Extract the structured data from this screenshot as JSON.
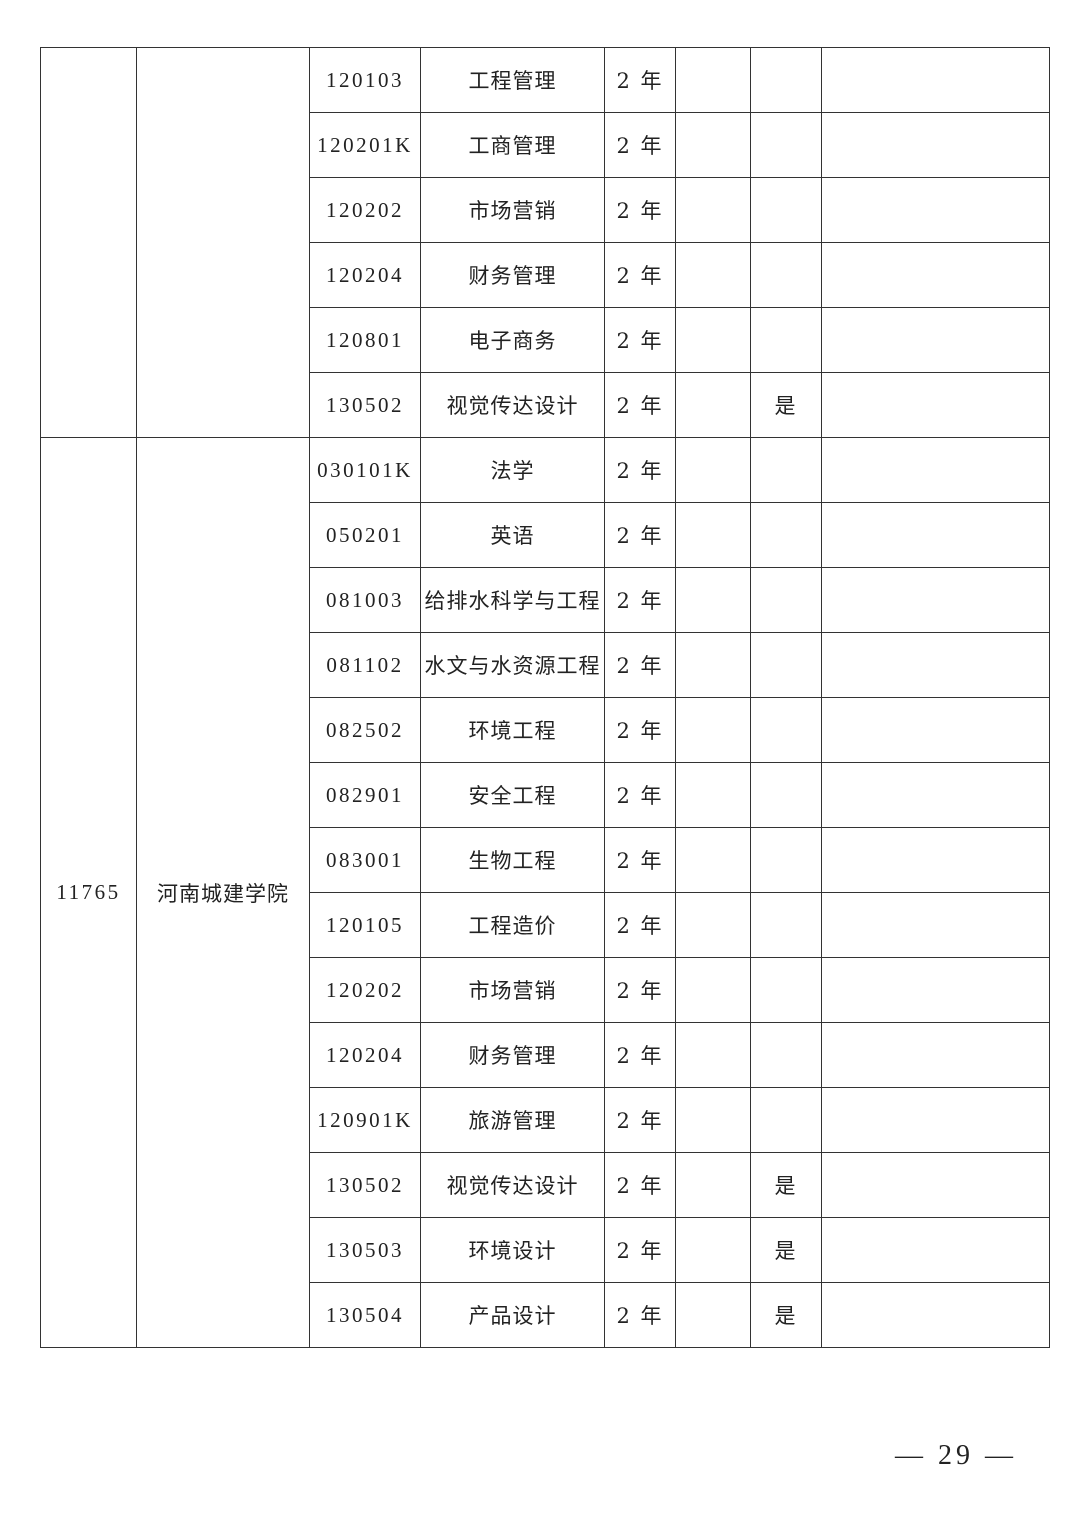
{
  "groups": [
    {
      "school_code": "",
      "school_name": "",
      "rows": [
        {
          "code": "120103",
          "major": "工程管理",
          "years": "2 年",
          "c5": "",
          "c6": "",
          "c7": ""
        },
        {
          "code": "120201K",
          "major": "工商管理",
          "years": "2 年",
          "c5": "",
          "c6": "",
          "c7": ""
        },
        {
          "code": "120202",
          "major": "市场营销",
          "years": "2 年",
          "c5": "",
          "c6": "",
          "c7": ""
        },
        {
          "code": "120204",
          "major": "财务管理",
          "years": "2 年",
          "c5": "",
          "c6": "",
          "c7": ""
        },
        {
          "code": "120801",
          "major": "电子商务",
          "years": "2 年",
          "c5": "",
          "c6": "",
          "c7": ""
        },
        {
          "code": "130502",
          "major": "视觉传达设计",
          "years": "2 年",
          "c5": "",
          "c6": "是",
          "c7": ""
        }
      ]
    },
    {
      "school_code": "11765",
      "school_name": "河南城建学院",
      "rows": [
        {
          "code": "030101K",
          "major": "法学",
          "years": "2 年",
          "c5": "",
          "c6": "",
          "c7": ""
        },
        {
          "code": "050201",
          "major": "英语",
          "years": "2 年",
          "c5": "",
          "c6": "",
          "c7": ""
        },
        {
          "code": "081003",
          "major": "给排水科学与工程",
          "years": "2 年",
          "c5": "",
          "c6": "",
          "c7": ""
        },
        {
          "code": "081102",
          "major": "水文与水资源工程",
          "years": "2 年",
          "c5": "",
          "c6": "",
          "c7": ""
        },
        {
          "code": "082502",
          "major": "环境工程",
          "years": "2 年",
          "c5": "",
          "c6": "",
          "c7": ""
        },
        {
          "code": "082901",
          "major": "安全工程",
          "years": "2 年",
          "c5": "",
          "c6": "",
          "c7": ""
        },
        {
          "code": "083001",
          "major": "生物工程",
          "years": "2 年",
          "c5": "",
          "c6": "",
          "c7": ""
        },
        {
          "code": "120105",
          "major": "工程造价",
          "years": "2 年",
          "c5": "",
          "c6": "",
          "c7": ""
        },
        {
          "code": "120202",
          "major": "市场营销",
          "years": "2 年",
          "c5": "",
          "c6": "",
          "c7": ""
        },
        {
          "code": "120204",
          "major": "财务管理",
          "years": "2 年",
          "c5": "",
          "c6": "",
          "c7": ""
        },
        {
          "code": "120901K",
          "major": "旅游管理",
          "years": "2 年",
          "c5": "",
          "c6": "",
          "c7": ""
        },
        {
          "code": "130502",
          "major": "视觉传达设计",
          "years": "2 年",
          "c5": "",
          "c6": "是",
          "c7": ""
        },
        {
          "code": "130503",
          "major": "环境设计",
          "years": "2 年",
          "c5": "",
          "c6": "是",
          "c7": ""
        },
        {
          "code": "130504",
          "major": "产品设计",
          "years": "2 年",
          "c5": "",
          "c6": "是",
          "c7": ""
        }
      ]
    }
  ],
  "page_number": "— 29 —"
}
